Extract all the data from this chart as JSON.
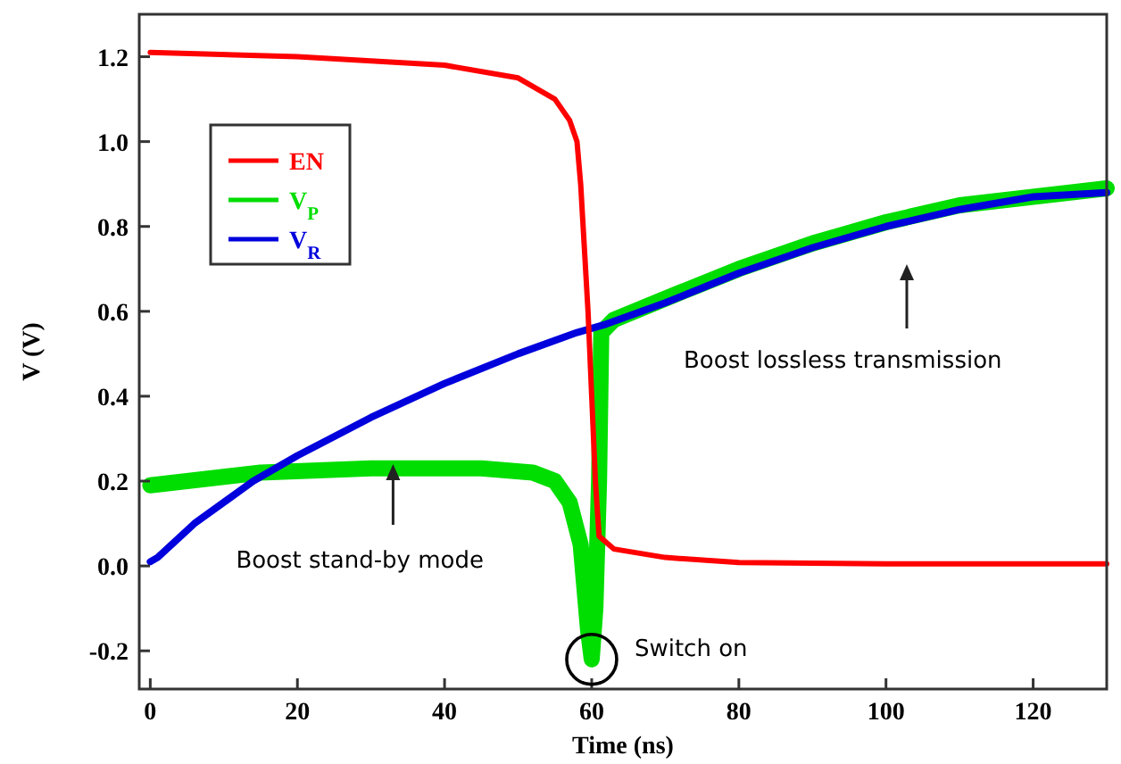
{
  "chart_data": {
    "type": "line",
    "xlabel": "Time (ns)",
    "ylabel": "V (V)",
    "xlim": [
      -1.5,
      130
    ],
    "ylim": [
      -0.29,
      1.3
    ],
    "xticks": [
      0,
      20,
      40,
      60,
      80,
      100,
      120
    ],
    "yticks": [
      {
        "value": -0.2,
        "label": "-0.2"
      },
      {
        "value": 0,
        "label": "0.0"
      },
      {
        "value": 0.2,
        "label": "0.2"
      },
      {
        "value": 0.4,
        "label": "0.4"
      },
      {
        "value": 0.6,
        "label": "0.6"
      },
      {
        "value": 0.8,
        "label": "0.8"
      },
      {
        "value": 1,
        "label": "1.0"
      },
      {
        "value": 1.2,
        "label": "1.2"
      }
    ],
    "grid": false,
    "legend": "top left",
    "line_style": "solid",
    "marker": "none",
    "series": [
      {
        "name": "EN",
        "color": "#ff0000",
        "x": [
          0,
          20,
          40,
          50,
          55,
          57,
          58,
          58.5,
          59,
          59.5,
          60,
          60.5,
          61,
          63,
          70,
          80,
          100,
          130
        ],
        "values": [
          1.21,
          1.2,
          1.18,
          1.15,
          1.1,
          1.05,
          1.0,
          0.9,
          0.75,
          0.6,
          0.4,
          0.2,
          0.07,
          0.04,
          0.02,
          0.008,
          0.005,
          0.005
        ]
      },
      {
        "name": "V$_{P}$",
        "color": "#00dd00",
        "x": [
          0,
          5,
          15,
          30,
          45,
          52,
          55,
          57,
          58.5,
          59,
          59.5,
          60,
          60.5,
          61,
          61.3,
          63,
          70,
          80,
          90,
          100,
          110,
          120,
          130
        ],
        "values": [
          0.19,
          0.2,
          0.22,
          0.23,
          0.23,
          0.22,
          0.2,
          0.15,
          0.05,
          -0.05,
          -0.15,
          -0.22,
          -0.1,
          0.2,
          0.55,
          0.58,
          0.63,
          0.7,
          0.76,
          0.81,
          0.85,
          0.87,
          0.89
        ]
      },
      {
        "name": "V$_{R}$",
        "color": "#0000dd",
        "x": [
          0,
          1,
          6,
          14,
          20,
          30,
          40,
          50,
          58,
          62,
          70,
          80,
          90,
          100,
          110,
          120,
          130
        ],
        "values": [
          0.01,
          0.02,
          0.1,
          0.2,
          0.26,
          0.35,
          0.43,
          0.5,
          0.55,
          0.57,
          0.62,
          0.69,
          0.75,
          0.8,
          0.84,
          0.87,
          0.88
        ]
      }
    ],
    "annotations": [
      {
        "text": "Boost stand-by mode",
        "x": 33,
        "y": 0.24
      },
      "Boost lossless transmission",
      {
        "text": "Switch on",
        "x": 60,
        "y": -0.22
      }
    ]
  }
}
